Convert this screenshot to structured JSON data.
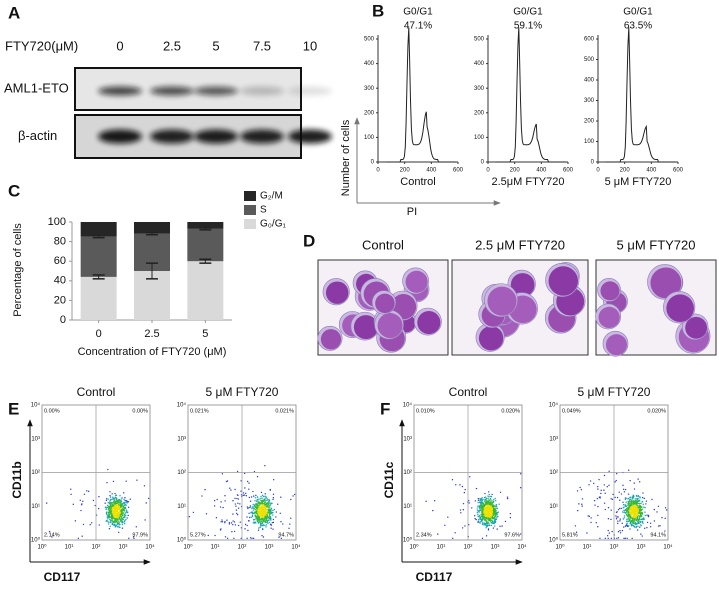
{
  "figure": {
    "panel_a": {
      "label": "A",
      "treatment": "FTY720(μM)",
      "doses": [
        "0",
        "2.5",
        "5",
        "7.5",
        "10"
      ],
      "proteins": [
        "AML1-ETO",
        "β-actin"
      ]
    },
    "panel_b": {
      "label": "B",
      "y_label": "Number of cells",
      "x_label": "PI",
      "histograms": [
        {
          "gate": "G0/G1",
          "percent": "47.1%",
          "condition": "Control",
          "yticks": [
            0,
            100,
            200,
            300,
            400,
            500
          ],
          "xticks": [
            0,
            200,
            400,
            600
          ]
        },
        {
          "gate": "G0/G1",
          "percent": "59.1%",
          "condition": "2.5μM FTY720",
          "yticks": [
            0,
            100,
            200,
            300,
            400,
            500
          ],
          "xticks": [
            0,
            200,
            400,
            600
          ]
        },
        {
          "gate": "G0/G1",
          "percent": "63.5%",
          "condition": "5 μM FTY720",
          "yticks": [
            0,
            100,
            200,
            300,
            400,
            500,
            600
          ],
          "xticks": [
            0,
            200,
            400,
            600
          ]
        }
      ]
    },
    "panel_c": {
      "label": "C"
    },
    "panel_d": {
      "label": "D",
      "conditions": [
        "Control",
        "2.5 μM FTY720",
        "5 μM FTY720"
      ]
    },
    "panel_e": {
      "label": "E",
      "y_label": "CD11b",
      "x_label": "CD117",
      "ticks": [
        "10⁰",
        "10¹",
        "10²",
        "10³",
        "10⁴"
      ],
      "plots": [
        {
          "condition": "Control",
          "quadrants": [
            "0.00%",
            "0.00%",
            "2.14%",
            "97.9%"
          ]
        },
        {
          "condition": "5 μM FTY720",
          "quadrants": [
            "0.021%",
            "0.021%",
            "5.27%",
            "94.7%"
          ]
        }
      ]
    },
    "panel_f": {
      "label": "F",
      "y_label": "CD11c",
      "x_label": "CD117",
      "ticks": [
        "10⁰",
        "10¹",
        "10²",
        "10³",
        "10⁴"
      ],
      "plots": [
        {
          "condition": "Control",
          "quadrants": [
            "0.010%",
            "0.020%",
            "2.34%",
            "97.6%"
          ]
        },
        {
          "condition": "5 μM FTY720",
          "quadrants": [
            "0.049%",
            "0.020%",
            "5.81%",
            "94.1%"
          ]
        }
      ]
    }
  },
  "chart_data": {
    "type": "bar",
    "stacked": true,
    "categories": [
      "0",
      "2.5",
      "5"
    ],
    "xlabel": "Concentration of FTY720 (μM)",
    "ylabel": "Percentage of cells",
    "ylim": [
      0,
      100
    ],
    "yticks": [
      0,
      20,
      40,
      60,
      80,
      100
    ],
    "legend": "right",
    "series": [
      {
        "name": "G₀/G₁",
        "color": "#d9d9d9",
        "values": [
          44,
          50,
          60
        ],
        "errors": [
          2,
          8,
          2
        ]
      },
      {
        "name": "S",
        "color": "#5a5a5a",
        "values": [
          41,
          38,
          33
        ],
        "errors": [
          1,
          1,
          1
        ]
      },
      {
        "name": "G₂/M",
        "color": "#262626",
        "values": [
          15,
          12,
          7
        ]
      }
    ]
  }
}
